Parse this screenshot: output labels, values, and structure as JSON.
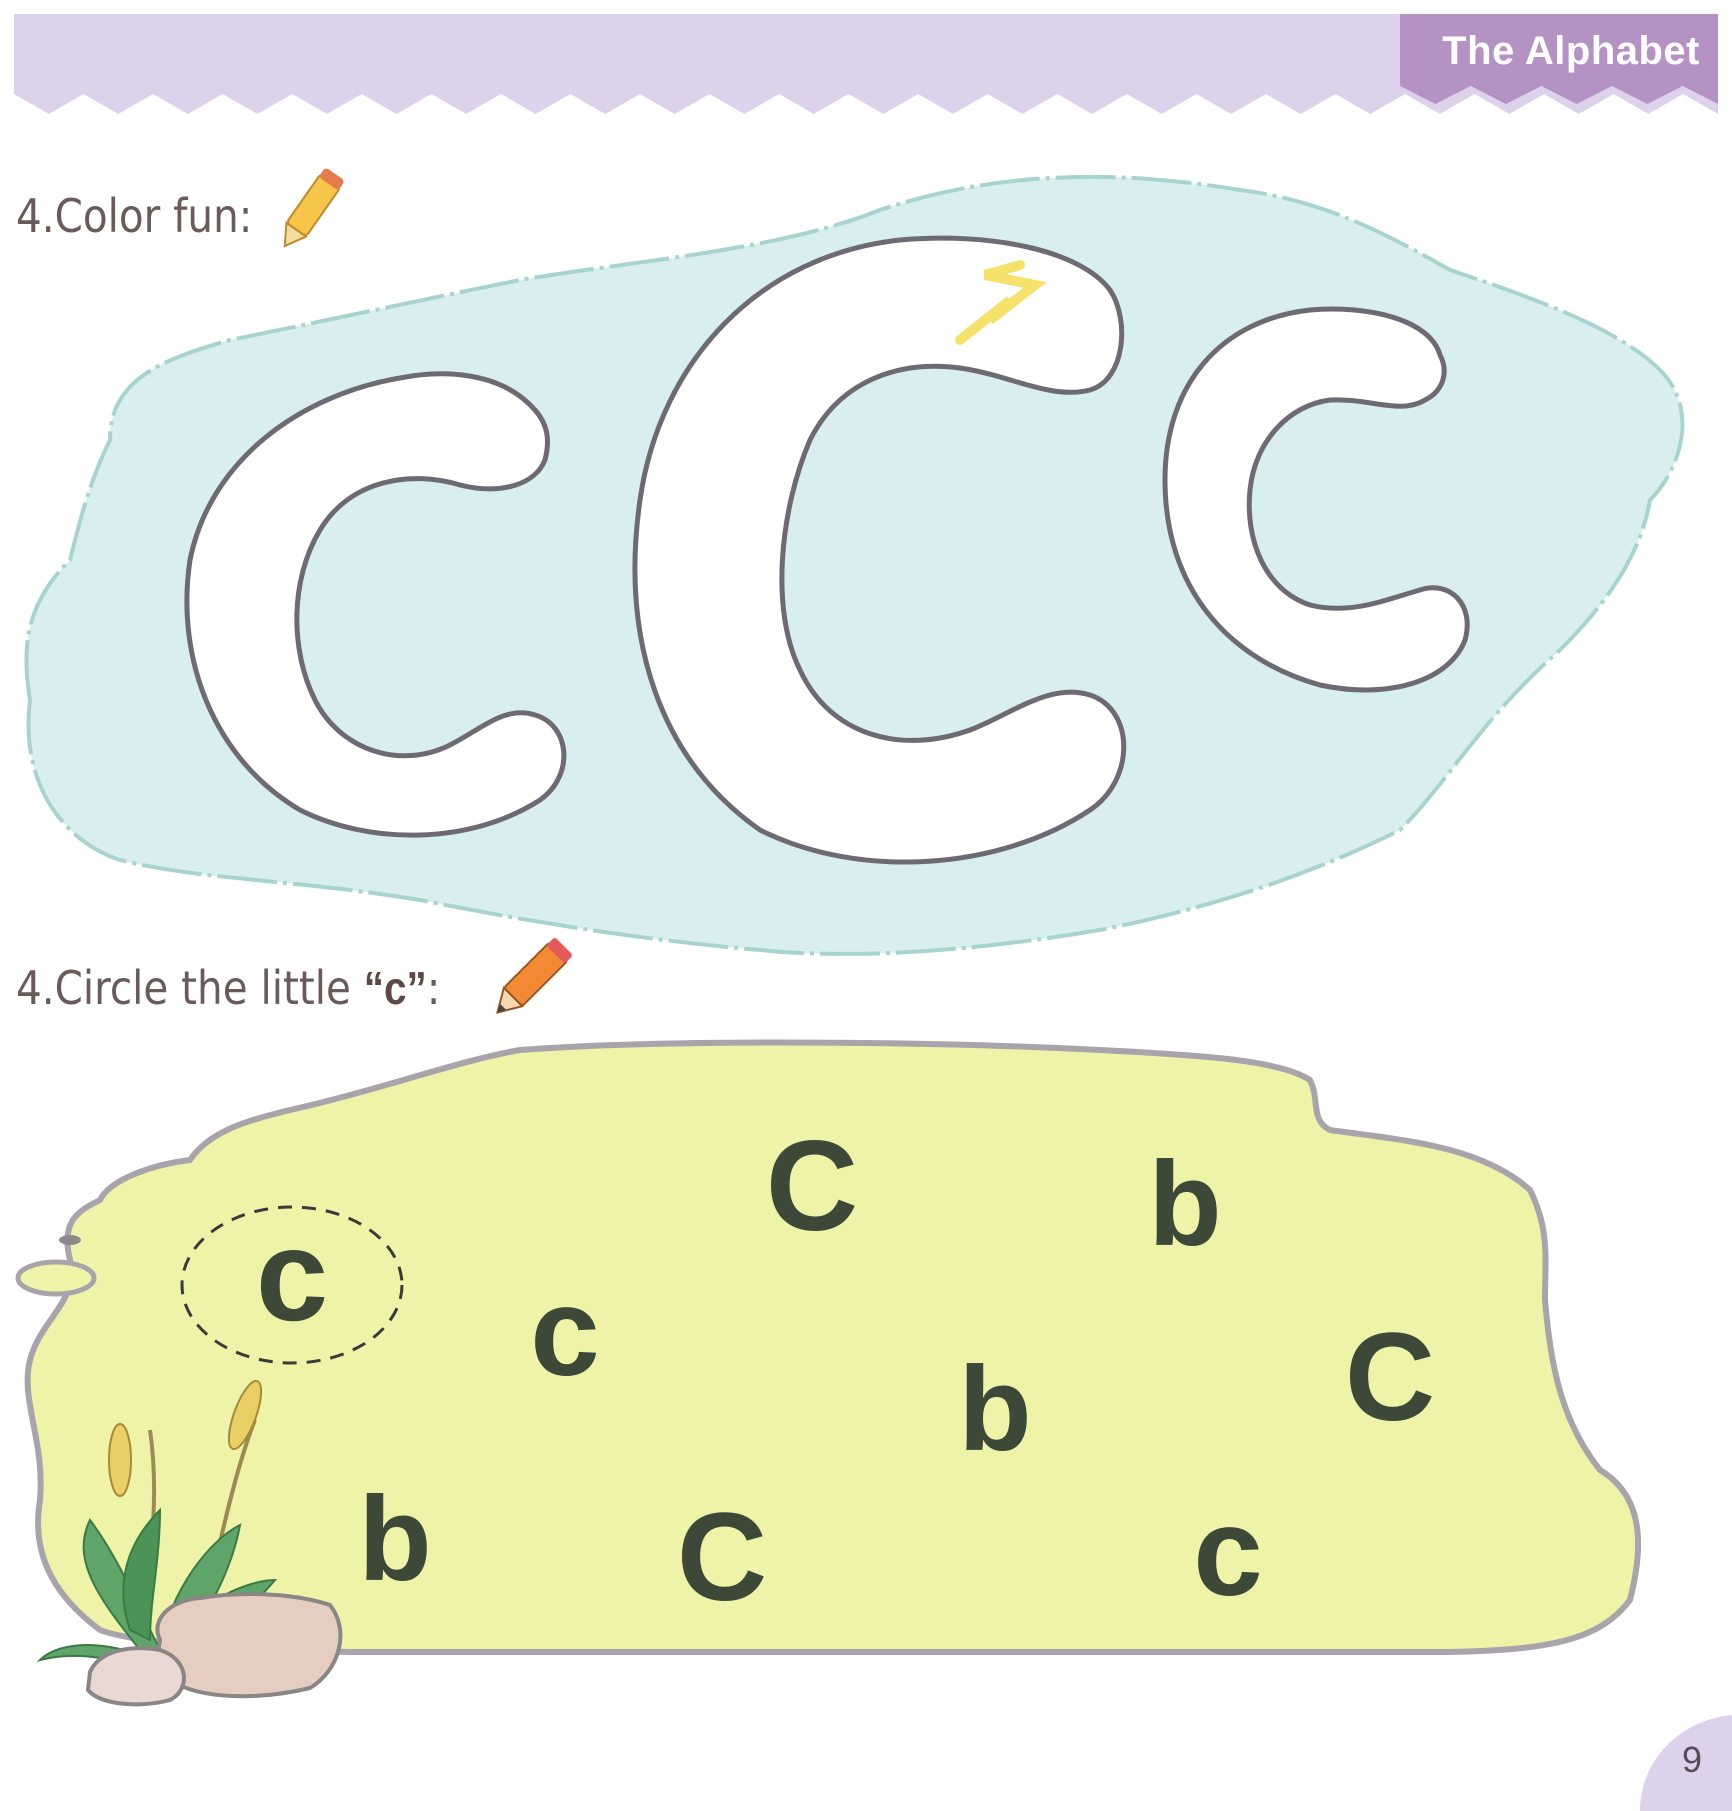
{
  "header": {
    "chapter_title": "The Alphabet",
    "band_color": "#dcd2ec",
    "tab_color": "#b592c4"
  },
  "exercise_color": {
    "number": "4.",
    "label": "Color fun:",
    "icon": "yellow-crayon-icon",
    "outline_letters": [
      "c",
      "C",
      "c"
    ],
    "background_color": "#d9eeee"
  },
  "exercise_circle": {
    "number": "4.",
    "label_before": "Circle the little ",
    "target": "“c”",
    "label_after": ":",
    "icon": "orange-pencil-icon",
    "letters": [
      {
        "char": "c",
        "circled": true
      },
      {
        "char": "c",
        "circled": false
      },
      {
        "char": "C",
        "circled": false
      },
      {
        "char": "b",
        "circled": false
      },
      {
        "char": "b",
        "circled": false
      },
      {
        "char": "C",
        "circled": false
      },
      {
        "char": "b",
        "circled": false
      },
      {
        "char": "C",
        "circled": false
      },
      {
        "char": "c",
        "circled": false
      }
    ],
    "background_color": "#eef3a8"
  },
  "footer": {
    "page_number": "9"
  }
}
